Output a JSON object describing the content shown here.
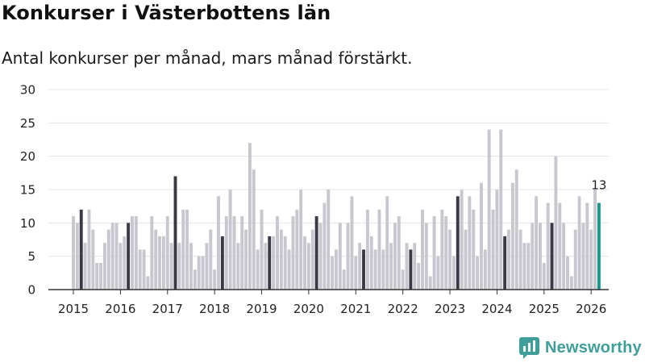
{
  "header": {
    "title": "Konkurser i Västerbottens län",
    "subtitle": "Antal konkurser per månad, mars månad förstärkt."
  },
  "brand": {
    "name": "Newsworthy",
    "icon": "newsworthy-logo-icon"
  },
  "colors": {
    "bar": "#c7c7cf",
    "march": "#3a3a46",
    "latest": "#1b968f",
    "grid": "#e3e3e3",
    "axis": "#333333",
    "brand": "#3f9e9a"
  },
  "chart_data": {
    "type": "bar",
    "title": "Konkurser i Västerbottens län",
    "subtitle": "Antal konkurser per månad, mars månad förstärkt.",
    "xlabel": "",
    "ylabel": "",
    "ylim": [
      0,
      30
    ],
    "yticks": [
      0,
      5,
      10,
      15,
      20,
      25,
      30
    ],
    "grid": true,
    "start": "2015-01",
    "highlight_month": "mars",
    "xtick_labels": [
      "2015",
      "2016",
      "2017",
      "2018",
      "2019",
      "2020",
      "2021",
      "2022",
      "2023",
      "2024",
      "2025",
      "2026"
    ],
    "values": [
      11,
      10,
      12,
      7,
      12,
      9,
      4,
      4,
      7,
      9,
      10,
      10,
      7,
      8,
      10,
      11,
      11,
      6,
      6,
      2,
      11,
      9,
      8,
      8,
      11,
      7,
      17,
      7,
      12,
      12,
      7,
      3,
      5,
      5,
      7,
      9,
      3,
      14,
      8,
      11,
      15,
      11,
      7,
      11,
      9,
      22,
      18,
      6,
      12,
      7,
      8,
      8,
      11,
      9,
      8,
      6,
      11,
      12,
      15,
      8,
      7,
      9,
      11,
      10,
      13,
      15,
      5,
      6,
      10,
      3,
      10,
      14,
      5,
      7,
      6,
      12,
      8,
      6,
      12,
      6,
      14,
      7,
      10,
      11,
      3,
      7,
      6,
      7,
      4,
      12,
      10,
      2,
      11,
      5,
      12,
      11,
      9,
      5,
      14,
      15,
      9,
      14,
      12,
      5,
      16,
      6,
      24,
      12,
      15,
      24,
      8,
      9,
      16,
      18,
      9,
      7,
      7,
      10,
      14,
      10,
      4,
      13,
      10,
      20,
      13,
      10,
      5,
      2,
      9,
      14,
      10,
      13,
      9,
      15,
      13
    ],
    "annotations": [
      {
        "index": 134,
        "label": "13"
      }
    ]
  }
}
